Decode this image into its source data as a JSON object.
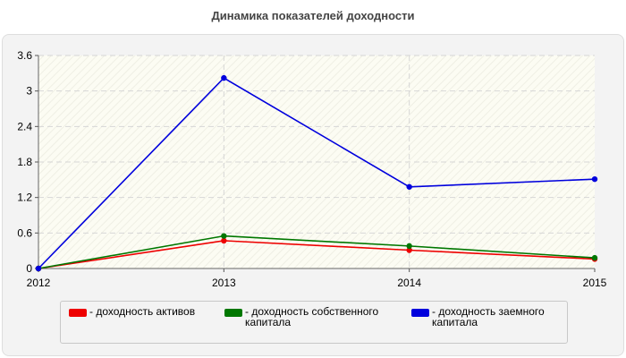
{
  "title": "Динамика показателей доходности",
  "chart_data": {
    "type": "line",
    "title": "Динамика показателей доходности",
    "xlabel": "",
    "ylabel": "",
    "x": [
      "2012",
      "2013",
      "2014",
      "2015"
    ],
    "ylim": [
      0,
      3.6
    ],
    "yticks": [
      "0",
      "0.6",
      "1.2",
      "1.8",
      "2.4",
      "3",
      "3.6"
    ],
    "grid": true,
    "legend_position": "bottom",
    "series": [
      {
        "name": "- доходность активов",
        "color": "#ee0000",
        "values": [
          0,
          0.47,
          0.31,
          0.16
        ]
      },
      {
        "name": "- доходность собственного капитала",
        "color": "#007700",
        "values": [
          0,
          0.55,
          0.38,
          0.18
        ]
      },
      {
        "name": "- доходность заемного капитала",
        "color": "#0000dd",
        "values": [
          0,
          3.22,
          1.38,
          1.51
        ]
      }
    ]
  }
}
